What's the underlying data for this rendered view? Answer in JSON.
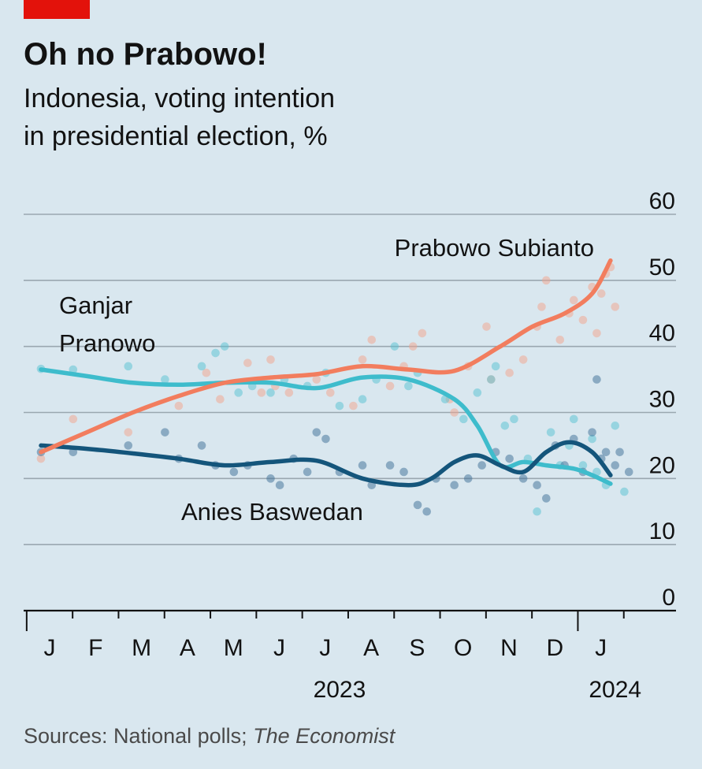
{
  "header": {
    "title": "Oh no Prabowo!",
    "subtitle_line1": "Indonesia, voting intention",
    "subtitle_line2": "in presidential election, %",
    "accent_color": "#e3120b"
  },
  "source": {
    "prefix": "Sources: National polls; ",
    "italic": "The Economist"
  },
  "chart_data": {
    "type": "line",
    "x_unit": "month",
    "x_range": [
      "2023-01",
      "2024-02"
    ],
    "ylim": [
      0,
      60
    ],
    "yticks": [
      0,
      10,
      20,
      30,
      40,
      50,
      60
    ],
    "grid": true,
    "month_labels": [
      "J",
      "F",
      "M",
      "A",
      "M",
      "J",
      "J",
      "A",
      "S",
      "O",
      "N",
      "D",
      "J"
    ],
    "year_labels": [
      {
        "text": "2023",
        "month": 6.5
      },
      {
        "text": "2024",
        "month": 12.5
      }
    ],
    "series": [
      {
        "name": "Prabowo Subianto",
        "label_lines": [
          "Prabowo Subianto"
        ],
        "color": "#f27d5e",
        "dot_color": "#f4a38c",
        "trend": [
          [
            0,
            24
          ],
          [
            1,
            27
          ],
          [
            2,
            30
          ],
          [
            3,
            32.5
          ],
          [
            4,
            34.5
          ],
          [
            5,
            35.3
          ],
          [
            6,
            35.8
          ],
          [
            7,
            37
          ],
          [
            8,
            36.5
          ],
          [
            9,
            36.3
          ],
          [
            10,
            40
          ],
          [
            10.7,
            43
          ],
          [
            11.4,
            45
          ],
          [
            12,
            48
          ],
          [
            12.4,
            53
          ]
        ],
        "polls": [
          [
            0,
            23
          ],
          [
            0.7,
            29
          ],
          [
            1.9,
            27
          ],
          [
            3,
            31
          ],
          [
            3.6,
            36
          ],
          [
            3.9,
            32
          ],
          [
            4.5,
            37.5
          ],
          [
            4.8,
            33
          ],
          [
            5,
            38
          ],
          [
            5.1,
            34
          ],
          [
            5.4,
            33
          ],
          [
            6,
            35
          ],
          [
            6.3,
            33
          ],
          [
            6.8,
            31
          ],
          [
            7,
            38
          ],
          [
            7.2,
            41
          ],
          [
            7.6,
            34
          ],
          [
            7.9,
            37
          ],
          [
            8.1,
            40
          ],
          [
            8.3,
            42
          ],
          [
            8.9,
            32
          ],
          [
            9,
            30
          ],
          [
            9.3,
            37
          ],
          [
            9.7,
            43
          ],
          [
            9.8,
            35
          ],
          [
            10.2,
            36
          ],
          [
            10.5,
            38
          ],
          [
            10.8,
            43
          ],
          [
            10.9,
            46
          ],
          [
            11,
            50
          ],
          [
            11.3,
            41
          ],
          [
            11.5,
            45
          ],
          [
            11.6,
            47
          ],
          [
            11.8,
            44
          ],
          [
            12,
            49
          ],
          [
            12.1,
            42
          ],
          [
            12.2,
            48
          ],
          [
            12.3,
            51
          ],
          [
            12.4,
            52
          ],
          [
            12.5,
            46
          ]
        ]
      },
      {
        "name": "Ganjar Pranowo",
        "label_lines": [
          "Ganjar",
          "Pranowo"
        ],
        "color": "#3ebccc",
        "dot_color": "#56c2d1",
        "trend": [
          [
            0,
            36.5
          ],
          [
            1,
            35.5
          ],
          [
            2,
            34.5
          ],
          [
            3,
            34.2
          ],
          [
            4,
            34.5
          ],
          [
            5,
            34.5
          ],
          [
            6,
            33.7
          ],
          [
            7,
            35.3
          ],
          [
            8,
            35
          ],
          [
            9,
            32
          ],
          [
            9.5,
            28
          ],
          [
            10,
            22
          ],
          [
            10.5,
            22.5
          ],
          [
            11,
            22
          ],
          [
            11.6,
            21.5
          ],
          [
            12,
            20.5
          ],
          [
            12.4,
            19.2
          ]
        ],
        "polls": [
          [
            0,
            36.6
          ],
          [
            0.7,
            36.5
          ],
          [
            1.9,
            37
          ],
          [
            2.7,
            35
          ],
          [
            3.5,
            37
          ],
          [
            3.8,
            39
          ],
          [
            4,
            40
          ],
          [
            4.3,
            33
          ],
          [
            4.6,
            34
          ],
          [
            5,
            33
          ],
          [
            5.3,
            35
          ],
          [
            5.8,
            34
          ],
          [
            6.2,
            36
          ],
          [
            6.5,
            31
          ],
          [
            7,
            32
          ],
          [
            7.3,
            35
          ],
          [
            7.7,
            40
          ],
          [
            8,
            34
          ],
          [
            8.2,
            36
          ],
          [
            8.8,
            32
          ],
          [
            9.2,
            29
          ],
          [
            9.5,
            33
          ],
          [
            9.8,
            35
          ],
          [
            9.9,
            37
          ],
          [
            10.1,
            28
          ],
          [
            10.3,
            29
          ],
          [
            10.6,
            23
          ],
          [
            10.8,
            15
          ],
          [
            11.1,
            27
          ],
          [
            11.3,
            22
          ],
          [
            11.5,
            25
          ],
          [
            11.6,
            29
          ],
          [
            11.8,
            22
          ],
          [
            12,
            26
          ],
          [
            12.1,
            21
          ],
          [
            12.3,
            19
          ],
          [
            12.5,
            28
          ],
          [
            12.7,
            18
          ]
        ]
      },
      {
        "name": "Anies Baswedan",
        "label_lines": [
          "Anies Baswedan"
        ],
        "color": "#14557b",
        "dot_color": "#3c6d96",
        "trend": [
          [
            0,
            25
          ],
          [
            1,
            24.5
          ],
          [
            2,
            23.8
          ],
          [
            3,
            23
          ],
          [
            4,
            22
          ],
          [
            5,
            22.5
          ],
          [
            6,
            22.7
          ],
          [
            7,
            20
          ],
          [
            8,
            19
          ],
          [
            8.5,
            20
          ],
          [
            9,
            22.5
          ],
          [
            9.5,
            23.5
          ],
          [
            10,
            22
          ],
          [
            10.5,
            21
          ],
          [
            11,
            24
          ],
          [
            11.5,
            25.5
          ],
          [
            12,
            24
          ],
          [
            12.4,
            20.5
          ]
        ],
        "polls": [
          [
            0,
            24
          ],
          [
            0.7,
            24
          ],
          [
            1.9,
            25
          ],
          [
            2.7,
            27
          ],
          [
            3,
            23
          ],
          [
            3.5,
            25
          ],
          [
            3.8,
            22
          ],
          [
            4.2,
            21
          ],
          [
            4.5,
            22
          ],
          [
            5,
            20
          ],
          [
            5.2,
            19
          ],
          [
            5.5,
            23
          ],
          [
            5.8,
            21
          ],
          [
            6,
            27
          ],
          [
            6.2,
            26
          ],
          [
            6.5,
            21
          ],
          [
            7,
            22
          ],
          [
            7.2,
            19
          ],
          [
            7.6,
            22
          ],
          [
            7.9,
            21
          ],
          [
            8.2,
            16
          ],
          [
            8.4,
            15
          ],
          [
            8.6,
            20
          ],
          [
            9,
            19
          ],
          [
            9.3,
            20
          ],
          [
            9.6,
            22
          ],
          [
            9.9,
            24
          ],
          [
            10.2,
            23
          ],
          [
            10.5,
            20
          ],
          [
            10.8,
            19
          ],
          [
            11,
            17
          ],
          [
            11.2,
            25
          ],
          [
            11.4,
            22
          ],
          [
            11.6,
            26
          ],
          [
            11.8,
            21
          ],
          [
            12,
            27
          ],
          [
            12.1,
            35
          ],
          [
            12.2,
            23
          ],
          [
            12.3,
            24
          ],
          [
            12.5,
            22
          ],
          [
            12.6,
            24
          ],
          [
            12.8,
            21
          ]
        ]
      }
    ]
  }
}
